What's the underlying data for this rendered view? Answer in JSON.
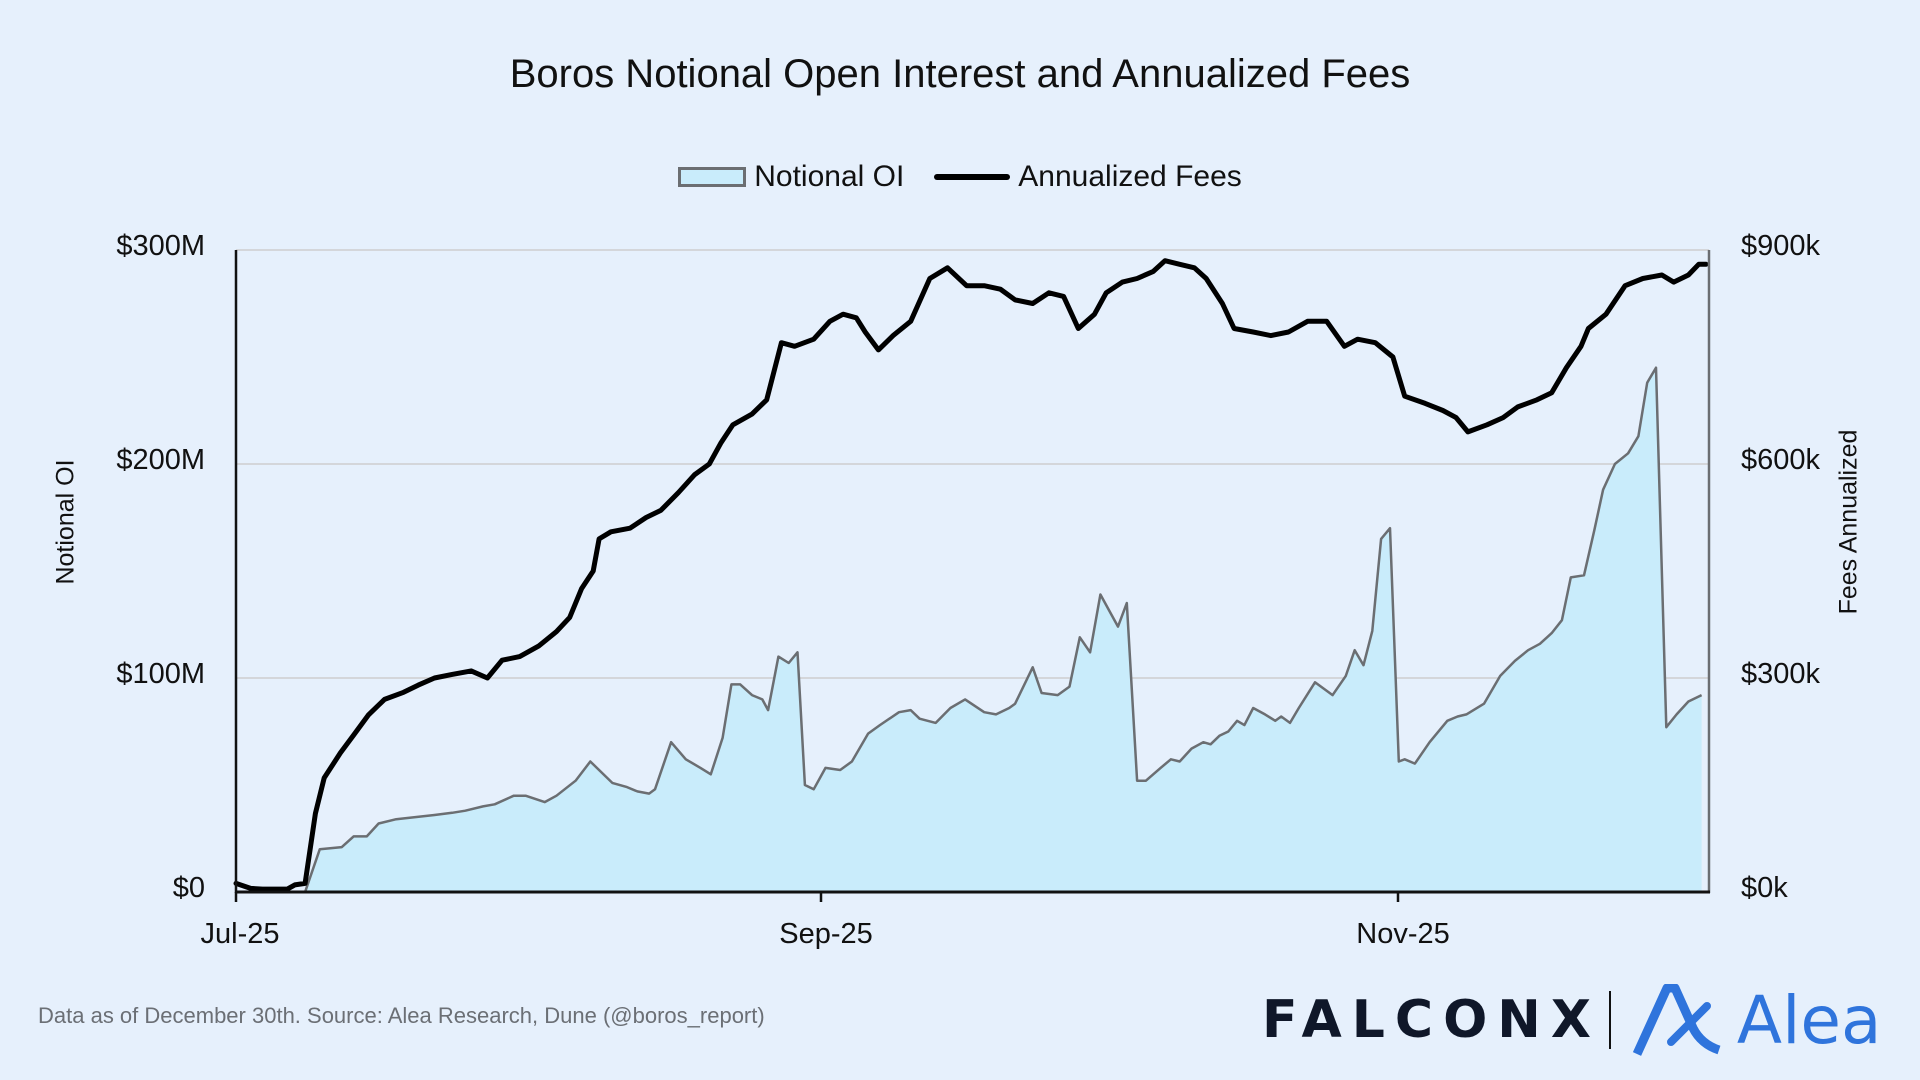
{
  "title": "Boros Notional Open Interest and Annualized Fees",
  "legend": {
    "notional_oi": "Notional OI",
    "annualized_fees": "Annualized Fees"
  },
  "axes": {
    "left_title": "Notional OI",
    "right_title": "Fees Annualized",
    "left_ticks": [
      "$0",
      "$100M",
      "$200M",
      "$300M"
    ],
    "right_ticks": [
      "$0k",
      "$300k",
      "$600k",
      "$900k"
    ],
    "x_ticks": [
      "Jul-25",
      "Sep-25",
      "Nov-25"
    ]
  },
  "footer": {
    "source": "Data as of December 30th. Source: Alea Research, Dune (@boros_report)"
  },
  "logos": {
    "falconx": "FALCONX",
    "alea": "Alea"
  },
  "colors": {
    "background": "#e6f0fc",
    "area_fill": "#c9ecfb",
    "area_stroke": "#6b6e72",
    "fees_line": "#000000",
    "grid": "#d4d6da",
    "alea_blue": "#2f74dc",
    "falconx_navy": "#0f1729"
  },
  "chart_data": {
    "type": "area+line",
    "title": "Boros Notional Open Interest and Annualized Fees",
    "xlabel": "",
    "ylabel": "Notional OI",
    "y2label": "Fees Annualized",
    "ylim": [
      0,
      300
    ],
    "y_unit": "$M",
    "y2lim": [
      0,
      900
    ],
    "y2_unit": "$k",
    "x_range": [
      "2025-07-01",
      "2025-12-30"
    ],
    "x_tick_labels": [
      "Jul-25",
      "Sep-25",
      "Nov-25"
    ],
    "grid": "horizontal",
    "legend_position": "top",
    "series": [
      {
        "name": "Notional OI",
        "type": "area",
        "axis": "left",
        "x_frac": [
          0,
          0.047,
          0.057,
          0.072,
          0.08,
          0.089,
          0.097,
          0.109,
          0.122,
          0.135,
          0.147,
          0.156,
          0.168,
          0.176,
          0.189,
          0.197,
          0.21,
          0.218,
          0.231,
          0.241,
          0.256,
          0.266,
          0.273,
          0.281,
          0.285,
          0.296,
          0.306,
          0.316,
          0.323,
          0.331,
          0.337,
          0.343,
          0.351,
          0.358,
          0.362,
          0.369,
          0.376,
          0.382,
          0.387,
          0.393,
          0.401,
          0.411,
          0.419,
          0.43,
          0.438,
          0.451,
          0.459,
          0.465,
          0.476,
          0.486,
          0.496,
          0.509,
          0.517,
          0.526,
          0.53,
          0.542,
          0.548,
          0.559,
          0.567,
          0.574,
          0.581,
          0.588,
          0.596,
          0.6,
          0.606,
          0.613,
          0.619,
          0.629,
          0.636,
          0.642,
          0.65,
          0.658,
          0.663,
          0.669,
          0.675,
          0.681,
          0.686,
          0.692,
          0.7,
          0.707,
          0.711,
          0.717,
          0.723,
          0.734,
          0.746,
          0.755,
          0.761,
          0.767,
          0.773,
          0.779,
          0.785,
          0.791,
          0.795,
          0.802,
          0.812,
          0.824,
          0.831,
          0.837,
          0.849,
          0.86,
          0.87,
          0.879,
          0.887,
          0.895,
          0.902,
          0.908,
          0.917,
          0.924,
          0.93,
          0.938,
          0.947,
          0.954,
          0.96,
          0.966,
          0.973,
          0.98,
          0.988,
          0.997
        ],
        "values": [
          0,
          0,
          20,
          21,
          26,
          26,
          32,
          34,
          35,
          36,
          37,
          38,
          40,
          41,
          45,
          45,
          42,
          45,
          52,
          61,
          51,
          49,
          47,
          46,
          48,
          70,
          62,
          58,
          55,
          72,
          97,
          97,
          92,
          90,
          85,
          110,
          107,
          112,
          50,
          48,
          58,
          57,
          61,
          74,
          78,
          84,
          85,
          81,
          79,
          86,
          90,
          84,
          83,
          86,
          88,
          105,
          93,
          92,
          96,
          119,
          112,
          139,
          129,
          124,
          135,
          52,
          52,
          58,
          62,
          61,
          67,
          70,
          69,
          73,
          75,
          80,
          78,
          86,
          83,
          80,
          82,
          79,
          86,
          98,
          92,
          101,
          113,
          106,
          122,
          165,
          170,
          61,
          62,
          60,
          70,
          80,
          82,
          83,
          88,
          101,
          108,
          113,
          116,
          121,
          127,
          147,
          148,
          169,
          188,
          200,
          205,
          213,
          238,
          245,
          77,
          83,
          89,
          92
        ]
      },
      {
        "name": "Annualized Fees",
        "type": "line",
        "axis": "right",
        "x_frac": [
          0,
          0.01,
          0.018,
          0.035,
          0.04,
          0.047,
          0.054,
          0.06,
          0.071,
          0.08,
          0.09,
          0.101,
          0.114,
          0.124,
          0.135,
          0.147,
          0.16,
          0.171,
          0.181,
          0.193,
          0.206,
          0.218,
          0.227,
          0.235,
          0.243,
          0.247,
          0.255,
          0.268,
          0.279,
          0.289,
          0.301,
          0.312,
          0.322,
          0.33,
          0.338,
          0.351,
          0.361,
          0.371,
          0.38,
          0.393,
          0.404,
          0.413,
          0.422,
          0.428,
          0.437,
          0.447,
          0.459,
          0.472,
          0.484,
          0.497,
          0.509,
          0.52,
          0.53,
          0.542,
          0.553,
          0.563,
          0.573,
          0.584,
          0.592,
          0.603,
          0.613,
          0.624,
          0.632,
          0.642,
          0.652,
          0.66,
          0.671,
          0.679,
          0.692,
          0.704,
          0.716,
          0.729,
          0.742,
          0.754,
          0.763,
          0.775,
          0.787,
          0.795,
          0.809,
          0.821,
          0.83,
          0.838,
          0.851,
          0.862,
          0.872,
          0.885,
          0.895,
          0.905,
          0.915,
          0.92,
          0.932,
          0.945,
          0.957,
          0.97,
          0.978,
          0.988,
          0.995,
          1.0
        ],
        "values": [
          12,
          5,
          4,
          4,
          10,
          12,
          110,
          160,
          195,
          220,
          248,
          270,
          280,
          290,
          300,
          305,
          310,
          300,
          325,
          330,
          345,
          365,
          385,
          425,
          450,
          495,
          505,
          510,
          525,
          535,
          560,
          585,
          600,
          630,
          655,
          670,
          690,
          770,
          765,
          775,
          800,
          810,
          805,
          785,
          760,
          780,
          800,
          860,
          875,
          850,
          850,
          845,
          830,
          825,
          840,
          835,
          790,
          810,
          840,
          855,
          860,
          870,
          885,
          880,
          875,
          860,
          825,
          790,
          785,
          780,
          785,
          800,
          800,
          765,
          775,
          770,
          750,
          695,
          685,
          675,
          665,
          645,
          655,
          665,
          680,
          690,
          700,
          735,
          765,
          790,
          810,
          850,
          860,
          865,
          855,
          865,
          880,
          880
        ]
      }
    ]
  }
}
